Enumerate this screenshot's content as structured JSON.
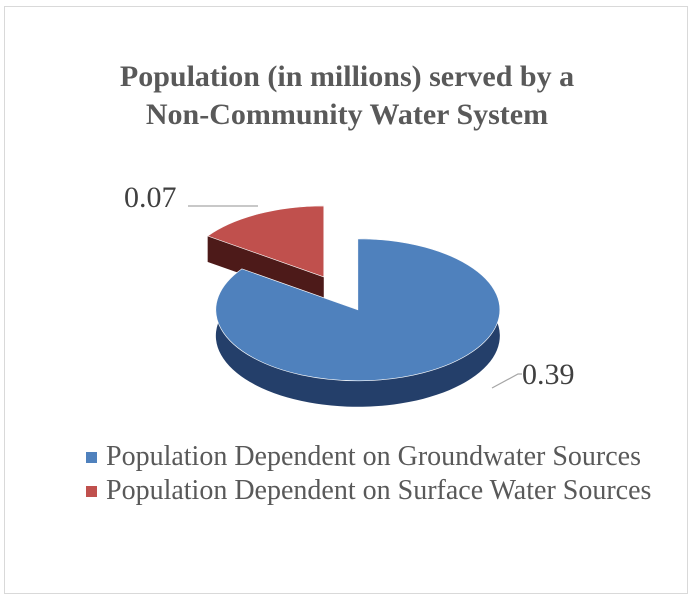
{
  "chart_data": {
    "type": "pie",
    "style": "3d-exploded",
    "title": [
      "Population (in millions) served by a",
      "Non-Community Water System"
    ],
    "slices": [
      {
        "label": "Population Dependent on Groundwater Sources",
        "value": 0.39,
        "value_text": "0.39",
        "color": "#4f81bd",
        "side_color": "#243f6a"
      },
      {
        "label": "Population Dependent on Surface Water Sources",
        "value": 0.07,
        "value_text": "0.07",
        "color": "#c0504d",
        "side_color": "#4d1a19"
      }
    ],
    "legend_position": "bottom"
  }
}
